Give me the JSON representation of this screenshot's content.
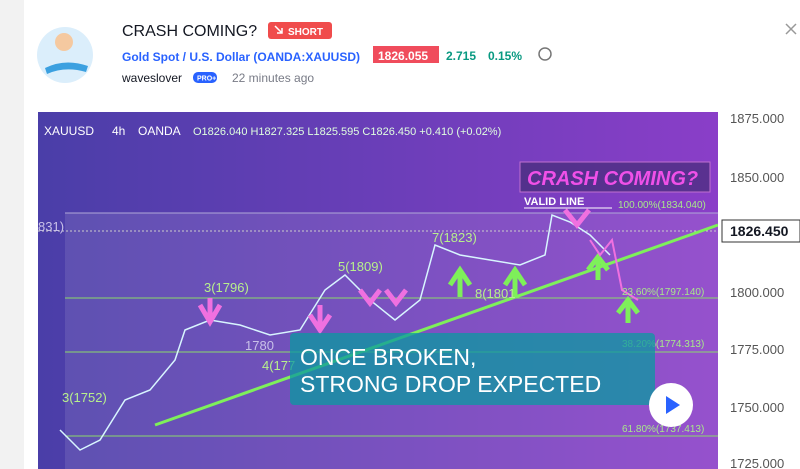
{
  "header": {
    "title": "CRASH COMING?",
    "badge": "SHORT",
    "symbol": "Gold Spot / U.S. Dollar (OANDA:XAUUSD)",
    "price": "1826.055",
    "change": "2.715",
    "change_percent": "0.15%",
    "author": "waveslover",
    "author_badge": "PRO+",
    "time": "22 minutes ago"
  },
  "chart": {
    "symbol": "XAUUSD",
    "interval": "4h",
    "exchange": "OANDA",
    "ohlc": "O1826.040 H1827.325 L1825.595 C1826.450 +0.410 (+0.02%)",
    "price_axis": [
      "1875.000",
      "1850.000",
      "1800.000",
      "1775.000",
      "1750.000",
      "1725.000"
    ],
    "last_price": "1826.450",
    "annotations": {
      "headline": "CRASH COMING?",
      "valid_line": "VALID LINE",
      "box_line1": "ONCE BROKEN,",
      "box_line2": "STRONG DROP EXPECTED"
    },
    "fib_labels": [
      "100.00%(1834.040)",
      "23.60%(1797.140)",
      "38.20%(1774.313)",
      "61.80%(1737.413)"
    ],
    "wave_labels": [
      "3(1796)",
      "5(1809)",
      "7(1823)",
      "8(1801",
      "4(177",
      "3(1752)",
      "1780",
      "831)"
    ]
  }
}
